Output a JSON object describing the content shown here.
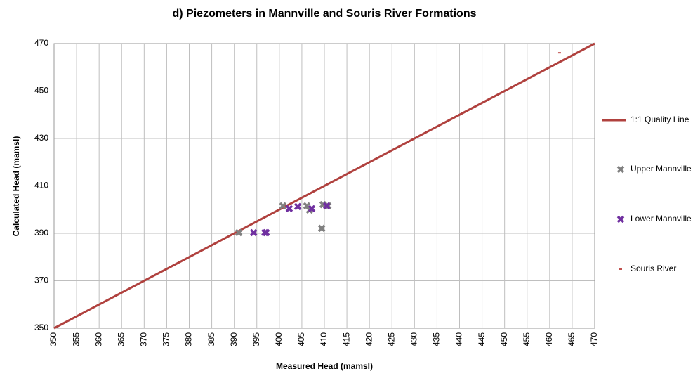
{
  "chart_data": {
    "type": "scatter",
    "title": "d) Piezometers in Mannville and Souris River Formations",
    "x_label": "Measured Head (mamsl)",
    "y_label": "Calculated Head (mamsl)",
    "xlim": [
      350,
      470
    ],
    "ylim": [
      350,
      470
    ],
    "xticks": [
      350,
      355,
      360,
      365,
      370,
      375,
      380,
      385,
      390,
      395,
      400,
      405,
      410,
      415,
      420,
      425,
      430,
      435,
      440,
      445,
      450,
      455,
      460,
      465,
      470
    ],
    "yticks": [
      350,
      370,
      390,
      410,
      430,
      450,
      470
    ],
    "grid": true,
    "legend": "right",
    "series": [
      {
        "name": "1:1 Quality Line",
        "color": "#b0413e",
        "x": [
          350,
          470
        ],
        "values": [
          350,
          470
        ]
      },
      {
        "name": "Upper Mannville",
        "color": "#808080",
        "x": [
          391.0,
          400.8,
          406.1,
          406.7,
          409.4,
          409.7,
          410.8
        ],
        "values": [
          390.3,
          401.6,
          401.6,
          399.8,
          392.1,
          402.1,
          401.6
        ]
      },
      {
        "name": "Lower Mannville",
        "color": "#7030a0",
        "x": [
          394.3,
          396.8,
          397.1,
          402.2,
          404.1,
          407.2,
          410.5
        ],
        "values": [
          390.3,
          390.3,
          390.3,
          400.4,
          401.3,
          400.4,
          401.6
        ]
      },
      {
        "name": "Souris River",
        "color": "#c0504d",
        "x": [
          462.2
        ],
        "values": [
          466.1
        ]
      }
    ]
  }
}
